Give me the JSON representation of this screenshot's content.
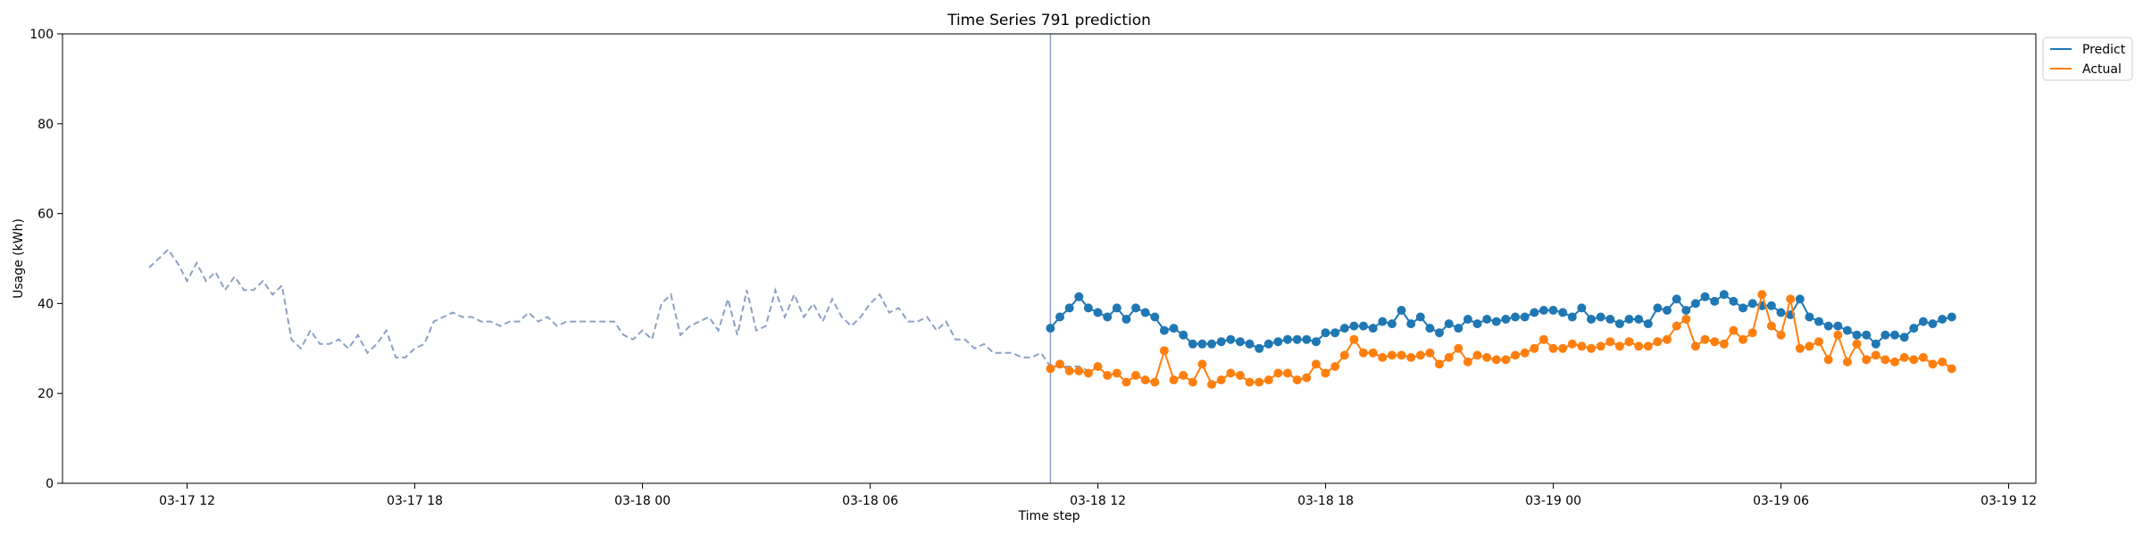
{
  "chart_data": {
    "type": "line",
    "title": "Time Series 791 prediction",
    "xlabel": "Time step",
    "ylabel": "Usage (kWh)",
    "ylim": [
      0,
      100
    ],
    "yticks": [
      0,
      20,
      40,
      60,
      80,
      100
    ],
    "xlim": [
      "2024-03-17 08:43",
      "2024-03-19 12:43"
    ],
    "xticks": [
      {
        "t": "2024-03-17 12:00",
        "label": "03-17 12"
      },
      {
        "t": "2024-03-17 18:00",
        "label": "03-17 18"
      },
      {
        "t": "2024-03-18 00:00",
        "label": "03-18 00"
      },
      {
        "t": "2024-03-18 06:00",
        "label": "03-18 06"
      },
      {
        "t": "2024-03-18 12:00",
        "label": "03-18 12"
      },
      {
        "t": "2024-03-18 18:00",
        "label": "03-18 18"
      },
      {
        "t": "2024-03-19 00:00",
        "label": "03-19 00"
      },
      {
        "t": "2024-03-19 06:00",
        "label": "03-19 06"
      },
      {
        "t": "2024-03-19 12:00",
        "label": "03-19 12"
      }
    ],
    "legend": {
      "placement": "upper-right-outside",
      "entries": [
        "Predict",
        "Actual"
      ]
    },
    "grid": false,
    "colors": {
      "predict": "#1f77b4",
      "actual": "#ff7f0e",
      "history": "#8ca0c4",
      "split_line": "#8ca0c4"
    },
    "split_time": "2024-03-18 10:45",
    "interval_minutes": 15,
    "series": [
      {
        "name": "",
        "style": "dashed",
        "start": "2024-03-17 11:00",
        "values": [
          48,
          50,
          52,
          49,
          45,
          49,
          45,
          47,
          43,
          46,
          43,
          43,
          45,
          42,
          44,
          32,
          30,
          34,
          31,
          31,
          32,
          30,
          33,
          29,
          31,
          34,
          28,
          28,
          30,
          31,
          36,
          37,
          38,
          37,
          37,
          36,
          36,
          35,
          36,
          36,
          38,
          36,
          37,
          35,
          36,
          36,
          36,
          36,
          36,
          36,
          33,
          32,
          34,
          32,
          40,
          42,
          33,
          35,
          36,
          37,
          34,
          41,
          33,
          43,
          34,
          35,
          43,
          37,
          42,
          37,
          40,
          36,
          41,
          37,
          35,
          37,
          40,
          42,
          38,
          39,
          36,
          36,
          37,
          34,
          36,
          32,
          32,
          30,
          31,
          29,
          29,
          29,
          28,
          28,
          29,
          26,
          26,
          26,
          26,
          25
        ]
      },
      {
        "name": "Predict",
        "style": "solid-markers",
        "start": "2024-03-18 10:45",
        "values": [
          34.5,
          37,
          39,
          41.5,
          39,
          38,
          37,
          39,
          36.5,
          39,
          38,
          37,
          34,
          34.5,
          33,
          31,
          31,
          31,
          31.5,
          32,
          31.5,
          31,
          30,
          31,
          31.5,
          32,
          32,
          32,
          31.5,
          33.5,
          33.5,
          34.5,
          35,
          35,
          34.5,
          36,
          35.5,
          38.5,
          35.5,
          37,
          34.5,
          33.5,
          35.5,
          34.5,
          36.5,
          35.5,
          36.5,
          36,
          36.5,
          37,
          37,
          38,
          38.5,
          38.5,
          38,
          37,
          39,
          36.5,
          37,
          36.5,
          35.5,
          36.5,
          36.5,
          35.5,
          39,
          38.5,
          41,
          38.5,
          40,
          41.5,
          40.5,
          42,
          40.5,
          39,
          40,
          39.5,
          39.5,
          38,
          37.5,
          41,
          37,
          36,
          35,
          35,
          34,
          33,
          33,
          31,
          33,
          33,
          32.5,
          34.5,
          36,
          35.5,
          36.5,
          37
        ]
      },
      {
        "name": "Actual",
        "style": "solid-markers",
        "start": "2024-03-18 10:45",
        "values": [
          25.5,
          26.5,
          25,
          25,
          24.5,
          26,
          24,
          24.5,
          22.5,
          24,
          23,
          22.5,
          29.5,
          23,
          24,
          22.5,
          26.5,
          22,
          23,
          24.5,
          24,
          22.5,
          22.5,
          23,
          24.5,
          24.5,
          23,
          23.5,
          26.5,
          24.5,
          26,
          28.5,
          32,
          29,
          29,
          28,
          28.5,
          28.5,
          28,
          28.5,
          29,
          26.5,
          28,
          30,
          27,
          28.5,
          28,
          27.5,
          27.5,
          28.5,
          29,
          30,
          32,
          30,
          30,
          31,
          30.5,
          30,
          30.5,
          31.5,
          30.5,
          31.5,
          30.5,
          30.5,
          31.5,
          32,
          35,
          36.5,
          30.5,
          32,
          31.5,
          31,
          34,
          32,
          33.5,
          42,
          35,
          33,
          41,
          30,
          30.5,
          31.5,
          27.5,
          33,
          27,
          31,
          27.5,
          28.5,
          27.5,
          27,
          28,
          27.5,
          28,
          26.5,
          27,
          25.5
        ]
      }
    ]
  }
}
